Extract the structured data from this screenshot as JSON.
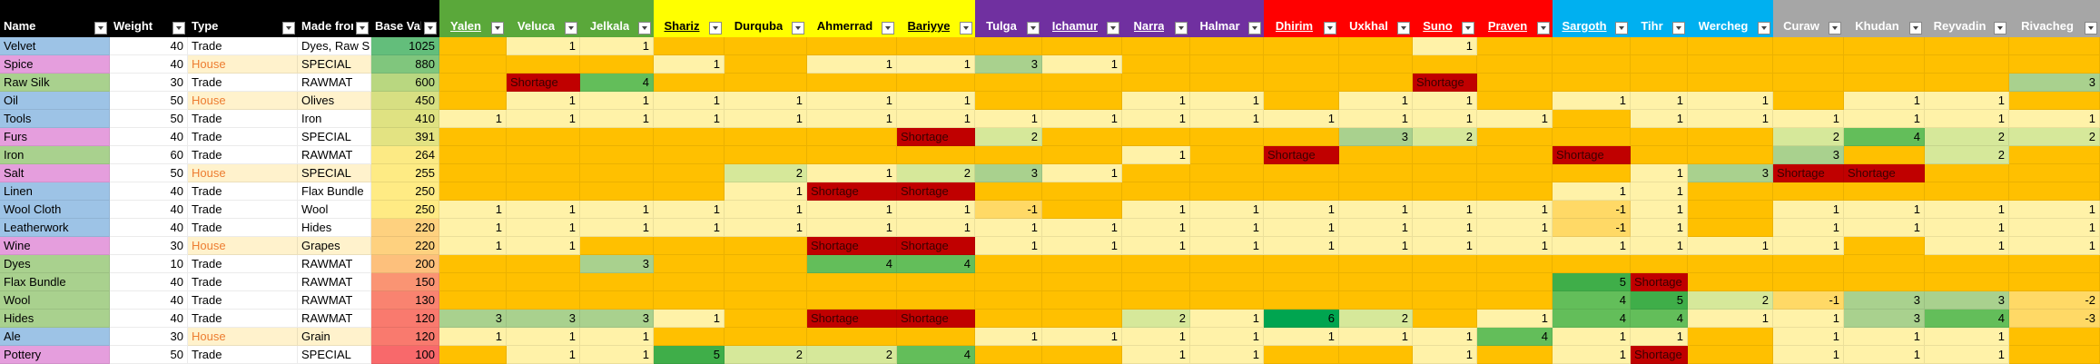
{
  "table": {
    "headers": [
      {
        "label": "Name",
        "color": "#000000",
        "text_color": "#ffffff"
      },
      {
        "label": "Weight",
        "color": "#000000",
        "text_color": "#ffffff"
      },
      {
        "label": "Type",
        "color": "#000000",
        "text_color": "#ffffff"
      },
      {
        "label": "Made from",
        "color": "#000000",
        "text_color": "#ffffff"
      },
      {
        "label": "Base Value",
        "color": "#000000",
        "text_color": "#ffffff"
      },
      {
        "label": "Yalen",
        "color": "#5aa83a",
        "text_color": "#ffffff",
        "underline": true
      },
      {
        "label": "Veluca",
        "color": "#5aa83a",
        "text_color": "#ffffff"
      },
      {
        "label": "Jelkala",
        "color": "#5aa83a",
        "text_color": "#ffffff"
      },
      {
        "label": "Shariz",
        "color": "#ffff00",
        "text_color": "#000000",
        "underline": true
      },
      {
        "label": "Durquba",
        "color": "#ffff00",
        "text_color": "#000000"
      },
      {
        "label": "Ahmerrad",
        "color": "#ffff00",
        "text_color": "#000000"
      },
      {
        "label": "Bariyye",
        "color": "#ffff00",
        "text_color": "#000000",
        "underline": true
      },
      {
        "label": "Tulga",
        "color": "#7030a0",
        "text_color": "#ffffff"
      },
      {
        "label": "Ichamur",
        "color": "#7030a0",
        "text_color": "#ffffff",
        "underline": true
      },
      {
        "label": "Narra",
        "color": "#7030a0",
        "text_color": "#ffffff",
        "underline": true
      },
      {
        "label": "Halmar",
        "color": "#7030a0",
        "text_color": "#ffffff"
      },
      {
        "label": "Dhirim",
        "color": "#ff0000",
        "text_color": "#ffffff",
        "underline": true
      },
      {
        "label": "Uxkhal",
        "color": "#ff0000",
        "text_color": "#ffffff"
      },
      {
        "label": "Suno",
        "color": "#ff0000",
        "text_color": "#ffffff",
        "underline": true
      },
      {
        "label": "Praven",
        "color": "#ff0000",
        "text_color": "#ffffff",
        "underline": true
      },
      {
        "label": "Sargoth",
        "color": "#00b0f0",
        "text_color": "#ffffff",
        "underline": true
      },
      {
        "label": "Tihr",
        "color": "#00b0f0",
        "text_color": "#ffffff"
      },
      {
        "label": "Wercheg",
        "color": "#00b0f0",
        "text_color": "#ffffff"
      },
      {
        "label": "Curaw",
        "color": "#a6a6a6",
        "text_color": "#ffffff"
      },
      {
        "label": "Khudan",
        "color": "#a6a6a6",
        "text_color": "#ffffff"
      },
      {
        "label": "Reyvadin",
        "color": "#a6a6a6",
        "text_color": "#ffffff"
      },
      {
        "label": "Rivacheg",
        "color": "#a6a6a6",
        "text_color": "#ffffff"
      }
    ],
    "rows": [
      {
        "name": "Velvet",
        "color": "#9dc3e6",
        "weight": 40,
        "type": "Trade",
        "made_from": "Dyes, Raw Si",
        "base_value": 1025,
        "cells": [
          null,
          1,
          1,
          null,
          null,
          null,
          null,
          null,
          null,
          null,
          null,
          null,
          null,
          1,
          null,
          null,
          null,
          null,
          null,
          null,
          null,
          null
        ]
      },
      {
        "name": "Spice",
        "color": "#e59edd",
        "weight": 40,
        "type": "House",
        "type_color": "#ed7d31",
        "made_from": "SPECIAL",
        "base_value": 880,
        "cells": [
          null,
          null,
          null,
          1,
          null,
          1,
          1,
          3,
          1,
          null,
          null,
          null,
          null,
          null,
          null,
          null,
          null,
          null,
          null,
          null,
          null,
          null
        ]
      },
      {
        "name": "Raw Silk",
        "color": "#a9d18e",
        "weight": 30,
        "type": "Trade",
        "made_from": "RAWMAT",
        "base_value": 600,
        "cells": [
          null,
          "Shortage",
          4,
          null,
          null,
          null,
          null,
          null,
          null,
          null,
          null,
          null,
          null,
          "Shortage",
          null,
          null,
          null,
          null,
          null,
          null,
          null,
          3
        ]
      },
      {
        "name": "Oil",
        "color": "#9dc3e6",
        "weight": 50,
        "type": "House",
        "type_color": "#ed7d31",
        "made_from": "Olives",
        "base_value": 450,
        "cells": [
          null,
          1,
          1,
          1,
          1,
          1,
          1,
          null,
          null,
          1,
          1,
          null,
          1,
          1,
          null,
          1,
          1,
          1,
          null,
          1,
          1,
          null
        ]
      },
      {
        "name": "Tools",
        "color": "#9dc3e6",
        "weight": 50,
        "type": "Trade",
        "made_from": "Iron",
        "base_value": 410,
        "cells": [
          1,
          1,
          1,
          1,
          1,
          1,
          1,
          1,
          1,
          1,
          1,
          1,
          1,
          1,
          1,
          null,
          1,
          1,
          1,
          1,
          1,
          1
        ]
      },
      {
        "name": "Furs",
        "color": "#e59edd",
        "weight": 40,
        "type": "Trade",
        "made_from": "SPECIAL",
        "base_value": 391,
        "cells": [
          null,
          null,
          null,
          null,
          null,
          null,
          "Shortage",
          2,
          null,
          null,
          null,
          null,
          3,
          2,
          null,
          null,
          null,
          null,
          2,
          4,
          2,
          2
        ]
      },
      {
        "name": "Iron",
        "color": "#a9d18e",
        "weight": 60,
        "type": "Trade",
        "made_from": "RAWMAT",
        "base_value": 264,
        "cells": [
          null,
          null,
          null,
          null,
          null,
          null,
          null,
          null,
          null,
          1,
          null,
          "Shortage",
          null,
          null,
          null,
          "Shortage",
          null,
          null,
          3,
          null,
          2,
          null
        ]
      },
      {
        "name": "Salt",
        "color": "#e59edd",
        "weight": 50,
        "type": "House",
        "type_color": "#ed7d31",
        "made_from": "SPECIAL",
        "base_value": 255,
        "cells": [
          null,
          null,
          null,
          null,
          2,
          1,
          2,
          3,
          1,
          null,
          null,
          null,
          null,
          null,
          null,
          null,
          1,
          3,
          "Shortage",
          "Shortage",
          null,
          null
        ]
      },
      {
        "name": "Linen",
        "color": "#9dc3e6",
        "weight": 40,
        "type": "Trade",
        "made_from": "Flax Bundle",
        "base_value": 250,
        "cells": [
          null,
          null,
          null,
          null,
          1,
          "Shortage",
          "Shortage",
          null,
          null,
          null,
          null,
          null,
          null,
          null,
          null,
          1,
          1,
          null,
          null,
          null,
          null,
          null
        ]
      },
      {
        "name": "Wool Cloth",
        "color": "#9dc3e6",
        "weight": 40,
        "type": "Trade",
        "made_from": "Wool",
        "base_value": 250,
        "cells": [
          1,
          1,
          1,
          1,
          1,
          1,
          1,
          -1,
          null,
          1,
          1,
          1,
          1,
          1,
          1,
          -1,
          1,
          null,
          1,
          1,
          1,
          1
        ]
      },
      {
        "name": "Leatherwork",
        "color": "#9dc3e6",
        "weight": 40,
        "type": "Trade",
        "made_from": "Hides",
        "base_value": 220,
        "cells": [
          1,
          1,
          1,
          1,
          1,
          1,
          1,
          1,
          1,
          1,
          1,
          1,
          1,
          1,
          1,
          -1,
          1,
          null,
          1,
          1,
          1,
          1
        ]
      },
      {
        "name": "Wine",
        "color": "#e59edd",
        "weight": 30,
        "type": "House",
        "type_color": "#ed7d31",
        "made_from": "Grapes",
        "base_value": 220,
        "cells": [
          1,
          1,
          null,
          null,
          null,
          "Shortage",
          "Shortage",
          1,
          1,
          1,
          1,
          1,
          1,
          1,
          1,
          1,
          1,
          1,
          1,
          null,
          1,
          1
        ]
      },
      {
        "name": "Dyes",
        "color": "#a9d18e",
        "weight": 10,
        "type": "Trade",
        "made_from": "RAWMAT",
        "base_value": 200,
        "cells": [
          null,
          null,
          3,
          null,
          null,
          4,
          4,
          null,
          null,
          null,
          null,
          null,
          null,
          null,
          null,
          null,
          null,
          null,
          null,
          null,
          null,
          null
        ]
      },
      {
        "name": "Flax Bundle",
        "color": "#a9d18e",
        "weight": 40,
        "type": "Trade",
        "made_from": "RAWMAT",
        "base_value": 150,
        "cells": [
          null,
          null,
          null,
          null,
          null,
          null,
          null,
          null,
          null,
          null,
          null,
          null,
          null,
          null,
          null,
          5,
          "Shortage",
          null,
          null,
          null,
          null,
          null
        ]
      },
      {
        "name": "Wool",
        "color": "#a9d18e",
        "weight": 40,
        "type": "Trade",
        "made_from": "RAWMAT",
        "base_value": 130,
        "cells": [
          null,
          null,
          null,
          null,
          null,
          null,
          null,
          null,
          null,
          null,
          null,
          null,
          null,
          null,
          null,
          4,
          5,
          2,
          -1,
          3,
          3,
          -2
        ]
      },
      {
        "name": "Hides",
        "color": "#a9d18e",
        "weight": 40,
        "type": "Trade",
        "made_from": "RAWMAT",
        "base_value": 120,
        "cells": [
          3,
          3,
          3,
          1,
          null,
          "Shortage",
          "Shortage",
          null,
          null,
          2,
          1,
          6,
          2,
          null,
          1,
          4,
          4,
          1,
          1,
          3,
          4,
          -3
        ]
      },
      {
        "name": "Ale",
        "color": "#9dc3e6",
        "weight": 30,
        "type": "House",
        "type_color": "#ed7d31",
        "made_from": "Grain",
        "base_value": 120,
        "cells": [
          1,
          1,
          1,
          null,
          null,
          null,
          null,
          1,
          1,
          1,
          1,
          1,
          1,
          1,
          4,
          1,
          1,
          null,
          1,
          1,
          1,
          null
        ]
      },
      {
        "name": "Pottery",
        "color": "#e59edd",
        "weight": 50,
        "type": "Trade",
        "made_from": "SPECIAL",
        "base_value": 100,
        "cells": [
          null,
          1,
          1,
          5,
          2,
          2,
          4,
          null,
          null,
          1,
          1,
          null,
          null,
          1,
          null,
          1,
          "Shortage",
          null,
          1,
          1,
          1,
          null
        ]
      }
    ]
  }
}
